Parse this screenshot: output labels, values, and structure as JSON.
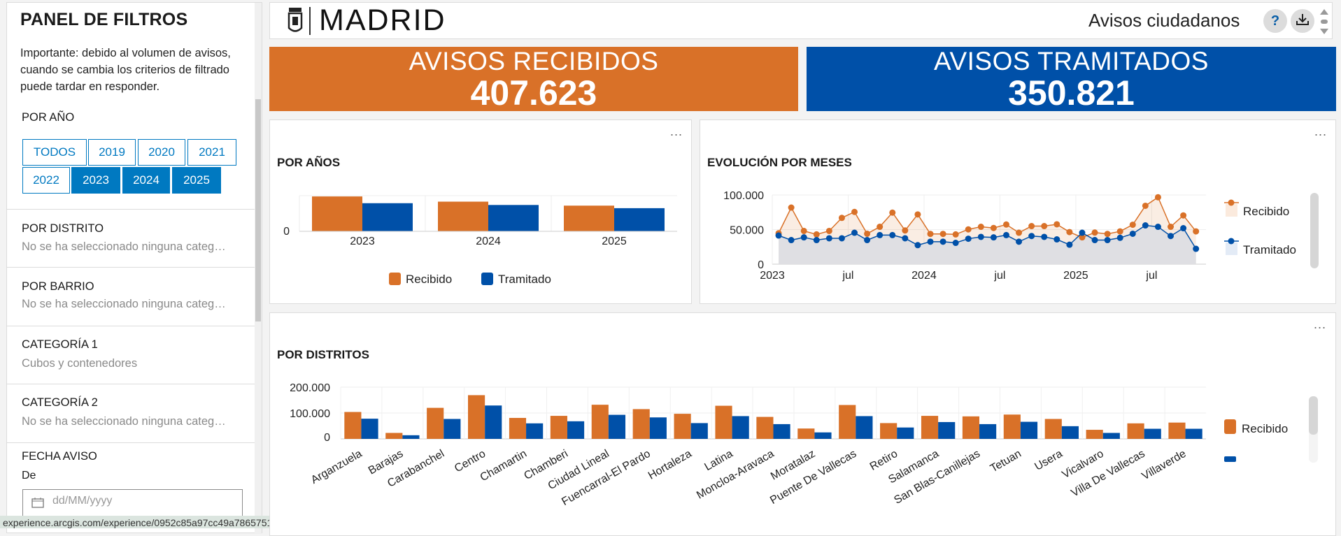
{
  "sidebar": {
    "title": "PANEL DE FILTROS",
    "note": "Importante: debido al volumen de avisos, cuando se cambia los criterios de filtrado puede tardar en responder.",
    "year_filter": {
      "title": "POR AÑO",
      "options": [
        {
          "label": "TODOS",
          "selected": false
        },
        {
          "label": "2019",
          "selected": false
        },
        {
          "label": "2020",
          "selected": false
        },
        {
          "label": "2021",
          "selected": false
        },
        {
          "label": "2022",
          "selected": false
        },
        {
          "label": "2023",
          "selected": true
        },
        {
          "label": "2024",
          "selected": true
        },
        {
          "label": "2025",
          "selected": true
        }
      ]
    },
    "sections": [
      {
        "title": "POR DISTRITO",
        "value": "No se ha seleccionado ninguna categ…"
      },
      {
        "title": "POR BARRIO",
        "value": "No se ha seleccionado ninguna categ…"
      },
      {
        "title": "CATEGORÍA 1",
        "value": "Cubos y contenedores"
      },
      {
        "title": "CATEGORÍA 2",
        "value": "No se ha seleccionado ninguna categ…"
      }
    ],
    "date": {
      "title": "FECHA AVISO",
      "from_label": "De",
      "placeholder": "dd/MM/yyyy",
      "icon": "calendar-icon"
    }
  },
  "status_url": "experience.arcgis.com/experience/0952c85a97cc49a78657517c8701e07b/page/Avisos-Recibi",
  "header": {
    "logo_text": "MADRID",
    "app_title": "Avisos ciudadanos",
    "help_label": "?",
    "icons": [
      "madrid-crest-icon",
      "help-icon",
      "download-icon",
      "scroll-arrows-icon"
    ]
  },
  "kpis": {
    "received": {
      "label": "AVISOS RECIBIDOS",
      "value": "407.623",
      "color": "#d97128"
    },
    "processed": {
      "label": "AVISOS TRAMITADOS",
      "value": "350.821",
      "color": "#0050a8"
    }
  },
  "colors": {
    "recibido": "#d97128",
    "tramitado": "#0050a8",
    "accent": "#0079c1"
  },
  "panels": {
    "by_year": {
      "title": "POR AÑOS",
      "menu": "..."
    },
    "by_month": {
      "title": "EVOLUCIÓN POR MESES",
      "menu": "..."
    },
    "by_district": {
      "title": "POR DISTRITOS",
      "menu": "..."
    }
  },
  "chart_data": [
    {
      "type": "bar",
      "title": "POR AÑOS",
      "categories": [
        "2023",
        "2024",
        "2025"
      ],
      "series": [
        {
          "name": "Recibido",
          "values": [
            157500,
            134000,
            116000
          ]
        },
        {
          "name": "Tramitado",
          "values": [
            127000,
            119000,
            104500
          ]
        }
      ],
      "yticks": [
        "0"
      ],
      "ylim": [
        0,
        161000
      ],
      "legend": "bottom",
      "grid": true
    },
    {
      "type": "line",
      "title": "EVOLUCIÓN POR MESES",
      "x": [
        "2023-01",
        "2023-02",
        "2023-03",
        "2023-04",
        "2023-05",
        "2023-06",
        "2023-07",
        "2023-08",
        "2023-09",
        "2023-10",
        "2023-11",
        "2023-12",
        "2024-01",
        "2024-02",
        "2024-03",
        "2024-04",
        "2024-05",
        "2024-06",
        "2024-07",
        "2024-08",
        "2024-09",
        "2024-10",
        "2024-11",
        "2024-12",
        "2025-01",
        "2025-02",
        "2025-03",
        "2025-04",
        "2025-05",
        "2025-06",
        "2025-07",
        "2025-08",
        "2025-09",
        "2025-10"
      ],
      "series": [
        {
          "name": "Recibido",
          "values": [
            44700,
            81800,
            48000,
            43000,
            48000,
            66900,
            75500,
            44000,
            54000,
            74500,
            48700,
            71900,
            43700,
            43700,
            43000,
            50300,
            54000,
            52300,
            57300,
            45400,
            55000,
            55000,
            57600,
            46400,
            38700,
            45700,
            43700,
            47400,
            57000,
            84400,
            96700,
            54000,
            70500,
            47400
          ]
        },
        {
          "name": "Tramitado",
          "values": [
            41400,
            34800,
            38700,
            34800,
            37400,
            37400,
            45400,
            34800,
            42000,
            42000,
            37400,
            27500,
            32500,
            32500,
            30800,
            36800,
            39400,
            38700,
            42000,
            32500,
            40700,
            39400,
            35800,
            28100,
            45400,
            34800,
            34800,
            38100,
            44000,
            56000,
            54000,
            40700,
            52000,
            22200
          ]
        }
      ],
      "xticks": [
        "2023",
        "jul",
        "2024",
        "jul",
        "2025",
        "jul"
      ],
      "yticks": [
        "0",
        "50.000",
        "100.000"
      ],
      "ylim": [
        0,
        100000
      ],
      "legend": "right",
      "grid": true
    },
    {
      "type": "bar",
      "title": "POR DISTRITOS",
      "categories": [
        "Arganzuela",
        "Barajas",
        "Carabanchel",
        "Centro",
        "Chamartin",
        "Chamberi",
        "Ciudad Lineal",
        "Fuencarral-El Pardo",
        "Hortaleza",
        "Latina",
        "Moncloa-Aravaca",
        "Moratalaz",
        "Puente De Vallecas",
        "Retiro",
        "Salamanca",
        "San Blas-Canillejas",
        "Tetuan",
        "Usera",
        "Vicalvaro",
        "Villa De Vallecas",
        "Villaverde"
      ],
      "series": [
        {
          "name": "Recibido",
          "values": [
            104000,
            23000,
            120000,
            169000,
            81000,
            89000,
            132000,
            115000,
            97000,
            128000,
            85000,
            40000,
            131000,
            61000,
            89000,
            87000,
            94000,
            77000,
            35000,
            60000,
            63000
          ]
        },
        {
          "name": "Tramitado",
          "values": [
            78000,
            14000,
            77000,
            129000,
            60000,
            68000,
            93000,
            83000,
            61000,
            88000,
            57000,
            25000,
            88000,
            44000,
            65000,
            57000,
            66000,
            49000,
            23000,
            39000,
            39000
          ]
        }
      ],
      "yticks": [
        "0",
        "100.000",
        "200.000"
      ],
      "ylim": [
        0,
        200000
      ],
      "legend": "right",
      "grid": true
    }
  ]
}
